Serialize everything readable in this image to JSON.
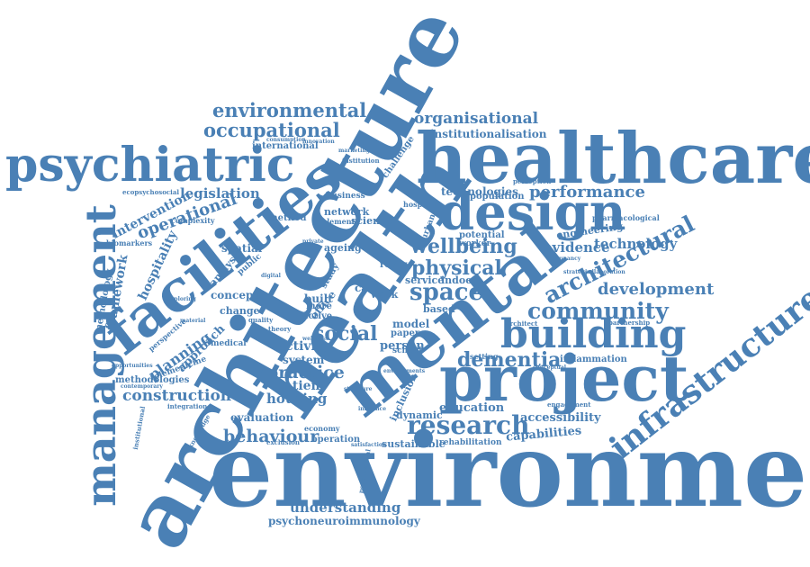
{
  "palette": {
    "word_color": "#4a80b5",
    "background": "#ffffff"
  },
  "words": [
    "environment",
    "architecture",
    "health",
    "healthcare",
    "mental",
    "facilities",
    "project",
    "design",
    "building",
    "psychiatric",
    "management",
    "infrastructure",
    "community",
    "development",
    "research",
    "space",
    "physical",
    "dementia",
    "wellbeing",
    "occupational",
    "environmental",
    "organisational",
    "performance",
    "technology",
    "architectural",
    "behaviour",
    "construction",
    "social",
    "practice",
    "understanding",
    "psychoneuroimmunology",
    "capabilities",
    "accessibility",
    "evidence",
    "operational",
    "intervention",
    "legislation",
    "hospitality",
    "planning",
    "approach",
    "framework",
    "methodology",
    "analysis",
    "education",
    "institutionalisation",
    "technologies",
    "housing",
    "evaluation",
    "activity",
    "system",
    "patient",
    "spatial",
    "concept",
    "model",
    "person",
    "built",
    "sustainable",
    "engineering",
    "inflammation",
    "rehabilitation",
    "methodologies",
    "telemedicine",
    "inclusion",
    "dynamic",
    "office",
    "study",
    "review",
    "work",
    "care",
    "service",
    "indoor",
    "based",
    "international",
    "network",
    "science",
    "ageing",
    "potential",
    "method",
    "change",
    "paper",
    "school",
    "medical",
    "public",
    "complexity",
    "population",
    "challenge",
    "urban",
    "biomarkers",
    "perspective",
    "operation",
    "economy",
    "exclusion",
    "integration",
    "perception",
    "worker",
    "pharmacological",
    "partnership",
    "architect",
    "conceptual",
    "quality",
    "more",
    "active",
    "business",
    "element",
    "hospital",
    "setting",
    "engagement",
    "ecopsychosocial",
    "institutional",
    "knowledge",
    "theory",
    "digital",
    "private",
    "marketing",
    "institution",
    "innovation",
    "consumption",
    "wellness",
    "occupancy",
    "strategies",
    "collaboration",
    "psychosocial",
    "satisfaction",
    "contemporary",
    "opportunities",
    "material",
    "structure",
    "influence",
    "exploring",
    "environments"
  ]
}
